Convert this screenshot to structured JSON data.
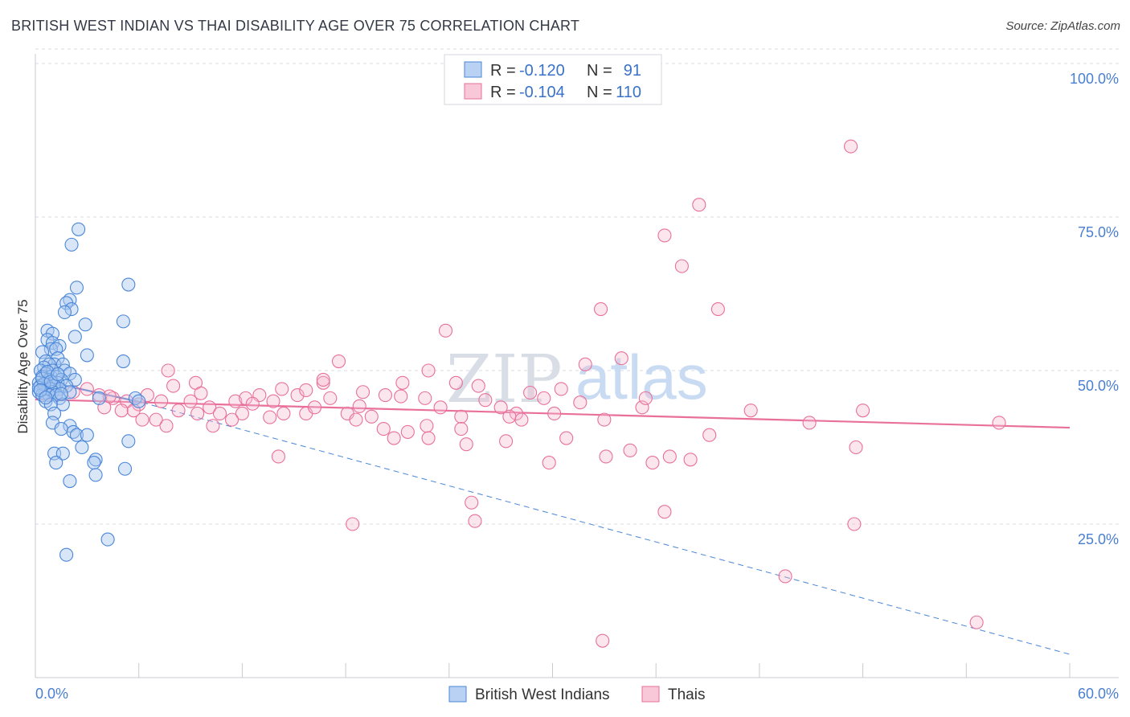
{
  "title": "BRITISH WEST INDIAN VS THAI DISABILITY AGE OVER 75 CORRELATION CHART",
  "source": "Source: ZipAtlas.com",
  "watermark": {
    "zip": "ZIP",
    "atlas": "atlas"
  },
  "colors": {
    "blue": "#4a86d8",
    "blue_fill": "#a9c8f0",
    "pink": "#e8709a",
    "pink_fill": "#f6b8cd",
    "axis_label": "#4a7fd0",
    "grid": "#d8dbe0"
  },
  "legend": [
    {
      "r_label": "R =",
      "r_value": "-0.120",
      "n_label": "N =",
      "n_value": "91"
    },
    {
      "r_label": "R =",
      "r_value": "-0.104",
      "n_label": "N =",
      "n_value": "110"
    }
  ],
  "chart_data": {
    "type": "scatter",
    "title": "BRITISH WEST INDIAN VS THAI DISABILITY AGE OVER 75 CORRELATION CHART",
    "xlabel": "",
    "ylabel": "Disability Age Over 75",
    "xlim": [
      0,
      60
    ],
    "ylim": [
      0,
      100
    ],
    "x_tick_labels": [
      "0.0%",
      "60.0%"
    ],
    "y_ticks": [
      25,
      50,
      75,
      100
    ],
    "y_tick_labels": [
      "25.0%",
      "50.0%",
      "75.0%",
      "100.0%"
    ],
    "series": [
      {
        "name": "British West Indians",
        "color": "blue",
        "trend": {
          "x": [
            0,
            6.2
          ],
          "y": [
            48.6,
            44.8
          ],
          "dashed_extension": {
            "x": [
              6.2,
              60
            ],
            "y": [
              44.8,
              3.8
            ]
          }
        },
        "points": [
          [
            2.5,
            73
          ],
          [
            2.1,
            70.5
          ],
          [
            2.4,
            63.5
          ],
          [
            5.4,
            64
          ],
          [
            2.0,
            61.5
          ],
          [
            1.8,
            61
          ],
          [
            2.1,
            60
          ],
          [
            1.7,
            59.5
          ],
          [
            5.1,
            58
          ],
          [
            2.9,
            57.5
          ],
          [
            0.7,
            56.5
          ],
          [
            1.0,
            56
          ],
          [
            2.3,
            55.5
          ],
          [
            0.7,
            55
          ],
          [
            1.0,
            54.5
          ],
          [
            1.4,
            54
          ],
          [
            0.9,
            53.5
          ],
          [
            1.2,
            53.5
          ],
          [
            0.4,
            53
          ],
          [
            3.0,
            52.5
          ],
          [
            1.3,
            52
          ],
          [
            0.6,
            51.5
          ],
          [
            1.1,
            51
          ],
          [
            0.8,
            51
          ],
          [
            1.6,
            51
          ],
          [
            5.1,
            51.5
          ],
          [
            0.5,
            50.5
          ],
          [
            1.0,
            50
          ],
          [
            1.7,
            50
          ],
          [
            2.0,
            49.5
          ],
          [
            0.3,
            50
          ],
          [
            0.6,
            49.5
          ],
          [
            0.9,
            49
          ],
          [
            1.2,
            49
          ],
          [
            0.4,
            49
          ],
          [
            0.8,
            48.5
          ],
          [
            1.5,
            48.5
          ],
          [
            2.3,
            48.5
          ],
          [
            0.2,
            48
          ],
          [
            0.6,
            48
          ],
          [
            1.0,
            48
          ],
          [
            1.3,
            48
          ],
          [
            0.3,
            47.5
          ],
          [
            0.7,
            47.5
          ],
          [
            1.1,
            47.5
          ],
          [
            1.8,
            47.5
          ],
          [
            0.5,
            47
          ],
          [
            0.9,
            47
          ],
          [
            1.4,
            47
          ],
          [
            0.2,
            46.5
          ],
          [
            0.6,
            46.5
          ],
          [
            1.0,
            46.5
          ],
          [
            2.0,
            46.5
          ],
          [
            0.4,
            46
          ],
          [
            0.8,
            46
          ],
          [
            1.2,
            46
          ],
          [
            3.7,
            45.5
          ],
          [
            5.8,
            45.5
          ],
          [
            0.6,
            45
          ],
          [
            1.4,
            45.5
          ],
          [
            1.6,
            44.5
          ],
          [
            0.9,
            44.5
          ],
          [
            1.1,
            43
          ],
          [
            6.0,
            45
          ],
          [
            1.0,
            41.5
          ],
          [
            2.0,
            41
          ],
          [
            1.5,
            40.5
          ],
          [
            2.2,
            40
          ],
          [
            2.4,
            39.5
          ],
          [
            3.0,
            39.5
          ],
          [
            5.4,
            38.5
          ],
          [
            2.7,
            37.5
          ],
          [
            1.1,
            36.5
          ],
          [
            1.6,
            36.5
          ],
          [
            3.5,
            35.5
          ],
          [
            3.4,
            35
          ],
          [
            1.2,
            35
          ],
          [
            5.2,
            34
          ],
          [
            3.5,
            33
          ],
          [
            2.0,
            32
          ],
          [
            4.2,
            22.5
          ],
          [
            1.8,
            20
          ],
          [
            0.5,
            47.8
          ],
          [
            0.2,
            47.2
          ],
          [
            0.4,
            48.7
          ],
          [
            0.7,
            49.8
          ],
          [
            1.5,
            46.2
          ],
          [
            0.3,
            46.8
          ],
          [
            0.6,
            45.6
          ],
          [
            0.9,
            48.2
          ],
          [
            1.3,
            49.4
          ]
        ]
      },
      {
        "name": "Thais",
        "color": "pink",
        "trend": {
          "x": [
            0,
            60
          ],
          "y": [
            45.3,
            40.7
          ]
        },
        "points": [
          [
            47.3,
            86.5
          ],
          [
            38.5,
            77
          ],
          [
            36.5,
            72
          ],
          [
            37.5,
            67
          ],
          [
            32.8,
            60
          ],
          [
            39.6,
            60
          ],
          [
            23.8,
            56.5
          ],
          [
            34.0,
            52
          ],
          [
            31.9,
            51
          ],
          [
            17.6,
            51.5
          ],
          [
            7.7,
            50
          ],
          [
            22.8,
            50
          ],
          [
            9.3,
            48
          ],
          [
            16.7,
            48
          ],
          [
            21.3,
            48
          ],
          [
            25.7,
            47.5
          ],
          [
            30.5,
            47
          ],
          [
            14.3,
            47
          ],
          [
            19.0,
            46.5
          ],
          [
            6.5,
            46
          ],
          [
            15.2,
            46
          ],
          [
            13.0,
            46
          ],
          [
            20.3,
            46
          ],
          [
            9.0,
            45
          ],
          [
            11.6,
            45
          ],
          [
            13.8,
            45
          ],
          [
            7.3,
            45
          ],
          [
            3.7,
            46
          ],
          [
            4.5,
            45.5
          ],
          [
            5.3,
            45
          ],
          [
            6.0,
            44.5
          ],
          [
            10.1,
            44
          ],
          [
            12.2,
            45.5
          ],
          [
            17.1,
            45.5
          ],
          [
            22.6,
            45.5
          ],
          [
            27.0,
            44
          ],
          [
            29.5,
            45.5
          ],
          [
            35.2,
            44
          ],
          [
            23.5,
            44
          ],
          [
            4.0,
            44
          ],
          [
            5.0,
            43.5
          ],
          [
            5.7,
            43.5
          ],
          [
            8.3,
            43.5
          ],
          [
            9.4,
            43
          ],
          [
            10.7,
            43
          ],
          [
            12.0,
            43
          ],
          [
            14.4,
            43
          ],
          [
            15.7,
            43
          ],
          [
            18.1,
            43
          ],
          [
            19.5,
            42.5
          ],
          [
            27.9,
            43
          ],
          [
            30.1,
            43
          ],
          [
            6.2,
            42
          ],
          [
            7.0,
            42
          ],
          [
            11.4,
            42
          ],
          [
            18.6,
            42
          ],
          [
            24.7,
            42.5
          ],
          [
            27.5,
            42.5
          ],
          [
            28.2,
            42
          ],
          [
            33.0,
            42
          ],
          [
            7.6,
            41
          ],
          [
            10.3,
            41
          ],
          [
            22.7,
            41
          ],
          [
            20.2,
            40.5
          ],
          [
            21.6,
            40
          ],
          [
            24.7,
            40.5
          ],
          [
            22.8,
            39
          ],
          [
            20.8,
            39
          ],
          [
            30.8,
            39
          ],
          [
            27.3,
            38.5
          ],
          [
            25.0,
            38
          ],
          [
            34.5,
            37
          ],
          [
            39.1,
            39.5
          ],
          [
            41.5,
            43.5
          ],
          [
            44.9,
            41.5
          ],
          [
            48.0,
            43.5
          ],
          [
            47.6,
            37.5
          ],
          [
            55.9,
            41.5
          ],
          [
            14.1,
            36
          ],
          [
            36.8,
            36
          ],
          [
            33.1,
            36
          ],
          [
            29.8,
            35
          ],
          [
            35.8,
            35
          ],
          [
            38.0,
            35.5
          ],
          [
            25.3,
            28.5
          ],
          [
            25.5,
            25.5
          ],
          [
            36.5,
            27
          ],
          [
            18.4,
            25
          ],
          [
            47.5,
            25
          ],
          [
            43.5,
            16.5
          ],
          [
            54.6,
            9
          ],
          [
            32.9,
            6
          ],
          [
            16.7,
            48.5
          ],
          [
            24.4,
            48
          ],
          [
            9.6,
            46.3
          ],
          [
            15.7,
            46.8
          ],
          [
            4.3,
            45.8
          ],
          [
            28.7,
            46.4
          ],
          [
            21.2,
            45.8
          ],
          [
            35.4,
            45.5
          ],
          [
            12.6,
            44.6
          ],
          [
            26.1,
            45.2
          ],
          [
            3.0,
            47
          ],
          [
            2.2,
            46.5
          ],
          [
            1.2,
            46
          ],
          [
            31.6,
            44.8
          ],
          [
            18.8,
            44.2
          ],
          [
            8.0,
            47.5
          ],
          [
            16.2,
            44
          ],
          [
            13.6,
            42.4
          ]
        ]
      }
    ]
  },
  "bottom_legend": [
    "British West Indians",
    "Thais"
  ]
}
